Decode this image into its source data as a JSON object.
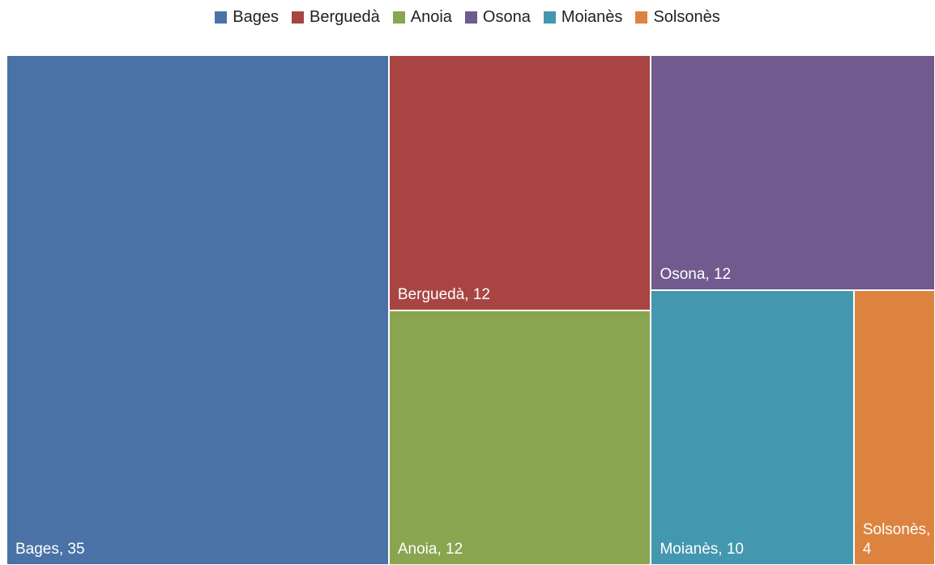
{
  "chart_data": {
    "type": "treemap",
    "categories": [
      "Bages",
      "Berguedà",
      "Anoia",
      "Osona",
      "Moianès",
      "Solsonès"
    ],
    "values": [
      35,
      12,
      12,
      12,
      10,
      4
    ],
    "value_labels": [
      "Bages, 35",
      "Berguedà, 12",
      "Anoia, 12",
      "Osona, 12",
      "Moianès, 10",
      "Solsonès, 4"
    ],
    "colors": [
      "#4a72a6",
      "#a84543",
      "#8aa54f",
      "#705a8e",
      "#4397ae",
      "#dc843f"
    ],
    "legend": "top"
  }
}
